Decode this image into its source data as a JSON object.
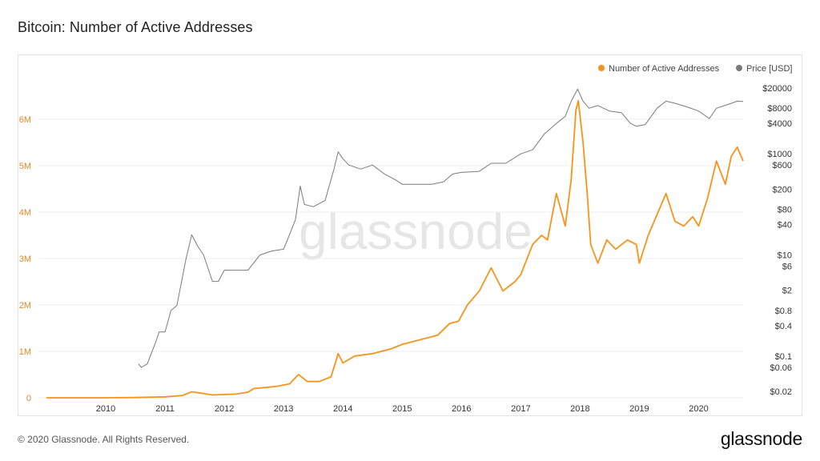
{
  "title": "Bitcoin: Number of Active Addresses",
  "watermark": "glassnode",
  "footer": {
    "copyright": "© 2020 Glassnode. All Rights Reserved.",
    "logo": "glassnode"
  },
  "colors": {
    "addresses": "#f7931a",
    "price": "#7a7a7a",
    "left_axis_text": "#e08a2a",
    "axis_text": "#333333",
    "grid": "#eeeeee",
    "watermark": "#e6e6e6"
  },
  "chart_data": {
    "type": "line",
    "title": "Bitcoin: Number of Active Addresses",
    "legend": {
      "placement": "top-right",
      "entries": [
        "Number of Active Addresses",
        "Price [USD]"
      ]
    },
    "x_ticks": [
      "2010",
      "2011",
      "2012",
      "2013",
      "2014",
      "2015",
      "2016",
      "2017",
      "2018",
      "2019",
      "2020"
    ],
    "x_range": [
      2009.0,
      2020.75
    ],
    "y_left": {
      "ticks": [
        0,
        1000000,
        2000000,
        3000000,
        4000000,
        5000000,
        6000000
      ],
      "tick_labels": [
        "0",
        "1M",
        "2M",
        "3M",
        "4M",
        "5M",
        "6M"
      ],
      "range": [
        0,
        7000000
      ]
    },
    "y_right": {
      "scale": "log",
      "ticks": [
        20000,
        8000,
        4000,
        1000,
        600,
        200,
        80,
        40,
        10,
        6,
        2,
        0.8,
        0.4,
        0.1,
        0.06,
        0.02
      ],
      "tick_labels": [
        "$20000",
        "$8000",
        "$4000",
        "$1000",
        "$600",
        "$200",
        "$80",
        "$40",
        "$10",
        "$6",
        "$2",
        "$0.8",
        "$0.4",
        "$0.1",
        "$0.06",
        "$0.02"
      ],
      "range": [
        0.015,
        40000
      ]
    },
    "grid": true,
    "series": [
      {
        "name": "Number of Active Addresses",
        "axis": "left",
        "x": [
          2009.0,
          2010.0,
          2010.5,
          2011.0,
          2011.3,
          2011.45,
          2011.6,
          2011.8,
          2012.0,
          2012.2,
          2012.4,
          2012.5,
          2012.7,
          2012.9,
          2013.1,
          2013.25,
          2013.4,
          2013.6,
          2013.8,
          2013.92,
          2014.0,
          2014.2,
          2014.5,
          2014.8,
          2015.0,
          2015.3,
          2015.6,
          2015.8,
          2015.95,
          2016.1,
          2016.3,
          2016.5,
          2016.7,
          2016.9,
          2017.0,
          2017.2,
          2017.35,
          2017.45,
          2017.6,
          2017.75,
          2017.85,
          2017.93,
          2017.97,
          2018.05,
          2018.12,
          2018.18,
          2018.3,
          2018.45,
          2018.6,
          2018.8,
          2018.95,
          2019.0,
          2019.15,
          2019.3,
          2019.45,
          2019.6,
          2019.75,
          2019.9,
          2020.0,
          2020.15,
          2020.3,
          2020.45,
          2020.55,
          2020.65,
          2020.75
        ],
        "values": [
          0,
          0,
          5000,
          20000,
          50000,
          130000,
          100000,
          60000,
          70000,
          80000,
          120000,
          200000,
          220000,
          250000,
          300000,
          500000,
          350000,
          350000,
          450000,
          950000,
          750000,
          900000,
          950000,
          1050000,
          1150000,
          1250000,
          1350000,
          1600000,
          1650000,
          2000000,
          2300000,
          2800000,
          2300000,
          2500000,
          2650000,
          3300000,
          3500000,
          3400000,
          4400000,
          3700000,
          4700000,
          6200000,
          6400000,
          5500000,
          4400000,
          3300000,
          2900000,
          3400000,
          3200000,
          3400000,
          3300000,
          2900000,
          3500000,
          3950000,
          4400000,
          3800000,
          3700000,
          3900000,
          3700000,
          4300000,
          5100000,
          4600000,
          5200000,
          5400000,
          5100000
        ]
      },
      {
        "name": "Price [USD]",
        "axis": "right",
        "x": [
          2010.55,
          2010.6,
          2010.7,
          2010.85,
          2010.9,
          2011.0,
          2011.1,
          2011.2,
          2011.35,
          2011.45,
          2011.55,
          2011.65,
          2011.8,
          2011.9,
          2012.0,
          2012.2,
          2012.4,
          2012.6,
          2012.8,
          2013.0,
          2013.2,
          2013.28,
          2013.35,
          2013.5,
          2013.7,
          2013.85,
          2013.92,
          2014.0,
          2014.1,
          2014.3,
          2014.5,
          2014.7,
          2014.9,
          2015.0,
          2015.2,
          2015.5,
          2015.7,
          2015.85,
          2016.0,
          2016.3,
          2016.5,
          2016.75,
          2017.0,
          2017.2,
          2017.4,
          2017.6,
          2017.75,
          2017.85,
          2017.96,
          2018.05,
          2018.15,
          2018.3,
          2018.5,
          2018.7,
          2018.85,
          2018.95,
          2019.1,
          2019.3,
          2019.45,
          2019.6,
          2019.8,
          2020.0,
          2020.18,
          2020.3,
          2020.5,
          2020.65,
          2020.75
        ],
        "values": [
          0.07,
          0.06,
          0.07,
          0.2,
          0.3,
          0.3,
          0.8,
          1,
          8,
          25,
          15,
          10,
          3,
          3,
          5,
          5,
          5,
          10,
          12,
          13,
          50,
          230,
          100,
          90,
          120,
          500,
          1100,
          800,
          600,
          500,
          600,
          400,
          300,
          250,
          250,
          250,
          280,
          400,
          430,
          450,
          650,
          650,
          1000,
          1200,
          2500,
          4000,
          5500,
          11000,
          19000,
          11000,
          8000,
          9000,
          7000,
          6500,
          4000,
          3500,
          3800,
          8000,
          11000,
          10000,
          8500,
          7000,
          5000,
          8000,
          9500,
          11000,
          10800
        ]
      }
    ]
  }
}
